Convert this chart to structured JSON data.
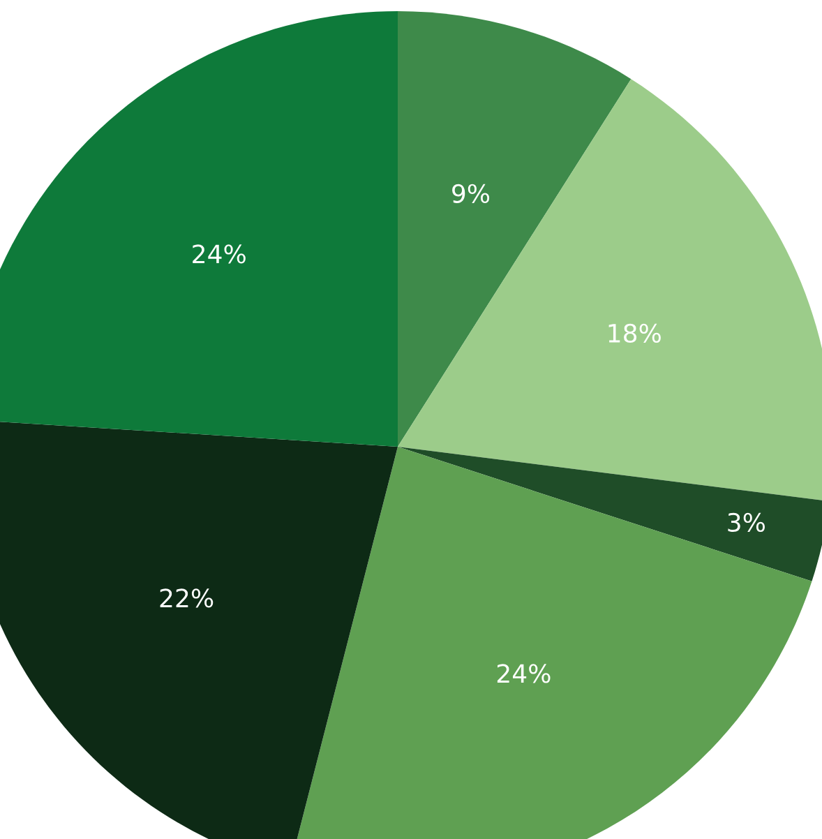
{
  "chart_data": {
    "type": "pie",
    "categories": [
      null,
      null,
      null,
      null,
      null,
      null
    ],
    "values": [
      9,
      18,
      3,
      24,
      22,
      24
    ],
    "colors": [
      "#3e8a4a",
      "#9ccc8a",
      "#1f4d28",
      "#5fa052",
      "#0d2a15",
      "#0e7a3a"
    ],
    "value_labels": [
      "9%",
      "18%",
      "3%",
      "24%",
      "22%",
      "24%"
    ],
    "legend": false
  }
}
